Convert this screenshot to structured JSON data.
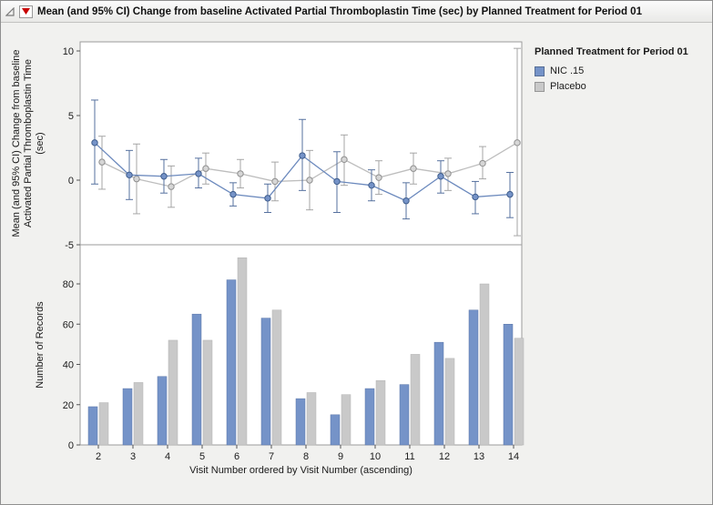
{
  "window": {
    "title": "Mean (and 95% CI) Change from baseline Activated Partial Thromboplastin Time (sec) by Planned Treatment for Period 01"
  },
  "legend": {
    "title": "Planned Treatment for Period 01",
    "entries": [
      {
        "key": "nic15",
        "label": "NIC .15",
        "color": "#7593c8"
      },
      {
        "key": "placebo",
        "label": "Placebo",
        "color": "#c9c9c9"
      }
    ]
  },
  "colors": {
    "nic_fill": "#7593c8",
    "nic_stroke": "#5a76a8",
    "nic_line": "#6b89bd",
    "nic_err": "#56719f",
    "nic_marker_fill": "#7593c8",
    "nic_marker_stroke": "#3f5d8c",
    "placebo_fill": "#c9c9c9",
    "placebo_stroke": "#b2b2b2",
    "placebo_line": "#bdbdbd",
    "placebo_err": "#a6a6a6",
    "placebo_marker_fill": "#d6d6d6",
    "placebo_marker_stroke": "#8f8f8f",
    "panel_border": "#9b9b9b",
    "tick_color": "#555555",
    "axis_text": "#1a1a1a"
  },
  "chart_data": [
    {
      "type": "line",
      "panel": "top",
      "ylabel_lines": [
        "Mean (and 95% CI) Change from baseline",
        "Activated Partial Thromboplastin Time",
        "(sec)"
      ],
      "x": [
        2,
        3,
        4,
        5,
        6,
        7,
        8,
        9,
        10,
        11,
        12,
        13,
        14
      ],
      "ylim": [
        -5,
        10
      ],
      "yticks": [
        -5,
        0,
        5,
        10
      ],
      "error_bars": "95% CI",
      "series": [
        {
          "name": "NIC .15",
          "means": [
            2.9,
            0.4,
            0.3,
            0.5,
            -1.1,
            -1.4,
            1.9,
            -0.1,
            -0.4,
            -1.6,
            0.3,
            -1.3,
            -1.1
          ],
          "ci_low": [
            -0.3,
            -1.5,
            -1.0,
            -0.6,
            -2.0,
            -2.5,
            -0.8,
            -2.5,
            -1.6,
            -3.0,
            -1.0,
            -2.6,
            -2.9
          ],
          "ci_high": [
            6.2,
            2.3,
            1.6,
            1.7,
            -0.2,
            -0.3,
            4.7,
            2.2,
            0.8,
            -0.2,
            1.5,
            -0.1,
            0.6
          ]
        },
        {
          "name": "Placebo",
          "means": [
            1.4,
            0.1,
            -0.5,
            0.9,
            0.5,
            -0.1,
            0.0,
            1.6,
            0.2,
            0.9,
            0.5,
            1.3,
            2.9
          ],
          "ci_low": [
            -0.7,
            -2.6,
            -2.1,
            -0.3,
            -0.6,
            -1.6,
            -2.3,
            -0.4,
            -1.1,
            -0.3,
            -0.8,
            0.1,
            -4.3
          ],
          "ci_high": [
            3.4,
            2.8,
            1.1,
            2.1,
            1.6,
            1.4,
            2.3,
            3.5,
            1.5,
            2.1,
            1.7,
            2.6,
            10.2
          ]
        }
      ]
    },
    {
      "type": "bar",
      "panel": "bottom",
      "ylabel": "Number of Records",
      "xlabel": "Visit Number ordered by Visit Number (ascending)",
      "categories": [
        2,
        3,
        4,
        5,
        6,
        7,
        8,
        9,
        10,
        11,
        12,
        13,
        14
      ],
      "ylim": [
        0,
        100
      ],
      "yticks": [
        0,
        20,
        40,
        60,
        80
      ],
      "series": [
        {
          "name": "NIC .15",
          "values": [
            19,
            28,
            34,
            65,
            82,
            63,
            23,
            15,
            28,
            30,
            51,
            67,
            60
          ]
        },
        {
          "name": "Placebo",
          "values": [
            21,
            31,
            52,
            52,
            93,
            67,
            26,
            25,
            32,
            45,
            43,
            80,
            53
          ]
        }
      ]
    }
  ]
}
